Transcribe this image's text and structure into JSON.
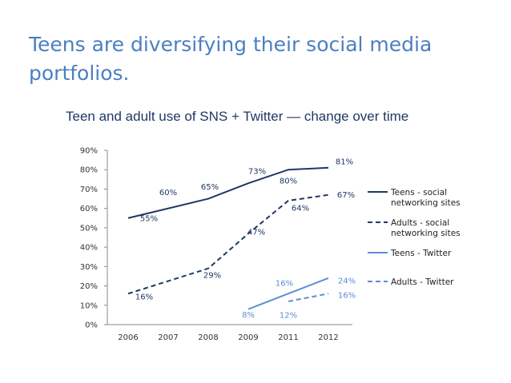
{
  "slide": {
    "title_line1": "Teens are diversifying their social media",
    "title_line2": "portfolios."
  },
  "chart_data": {
    "type": "line",
    "title": "Teen and adult use of SNS + Twitter — change over time",
    "categories": [
      "2006",
      "2007",
      "2008",
      "2009",
      "2011",
      "2012"
    ],
    "y_ticks": [
      "0%",
      "10%",
      "20%",
      "30%",
      "40%",
      "50%",
      "60%",
      "70%",
      "80%",
      "90%"
    ],
    "ylim": [
      0,
      90
    ],
    "xlabel": "",
    "ylabel": "",
    "grid": false,
    "legend_position": "right",
    "series": [
      {
        "name": "Teens - social networking sites",
        "legend_lines": [
          "Teens - social",
          "networking sites"
        ],
        "color": "#1f3864",
        "dash": "solid",
        "points": [
          {
            "x": "2006",
            "y": 55,
            "label": "55%"
          },
          {
            "x": "2008",
            "y": 65,
            "label": "65%"
          },
          {
            "x": "2009",
            "y": 73,
            "label": "73%"
          },
          {
            "x": "2011",
            "y": 80,
            "label": "80%"
          },
          {
            "x": "2012",
            "y": 81,
            "label": "81%"
          }
        ],
        "extra_labels": [
          {
            "x": "2007",
            "y": 60,
            "label": "60%"
          }
        ]
      },
      {
        "name": "Adults - social networking sites",
        "legend_lines": [
          "Adults - social",
          "networking sites"
        ],
        "color": "#1f3864",
        "dash": "dashed",
        "points": [
          {
            "x": "2006",
            "y": 16,
            "label": "16%"
          },
          {
            "x": "2008",
            "y": 29,
            "label": "29%"
          },
          {
            "x": "2009",
            "y": 47,
            "label": "47%"
          },
          {
            "x": "2011",
            "y": 64,
            "label": "64%"
          },
          {
            "x": "2012",
            "y": 67,
            "label": "67%"
          }
        ],
        "extra_labels": []
      },
      {
        "name": "Teens - Twitter",
        "legend_lines": [
          "Teens - Twitter"
        ],
        "color": "#5b8ed6",
        "dash": "solid",
        "points": [
          {
            "x": "2009",
            "y": 8,
            "label": "8%"
          },
          {
            "x": "2011",
            "y": 16,
            "label": "16%"
          },
          {
            "x": "2012",
            "y": 24,
            "label": "24%"
          }
        ],
        "extra_labels": []
      },
      {
        "name": "Adults - Twitter",
        "legend_lines": [
          "Adults - Twitter"
        ],
        "color": "#5b8ed6",
        "dash": "dashed",
        "points": [
          {
            "x": "2011",
            "y": 12,
            "label": "12%"
          },
          {
            "x": "2012",
            "y": 16,
            "label": "16%"
          }
        ],
        "extra_labels": []
      }
    ]
  }
}
